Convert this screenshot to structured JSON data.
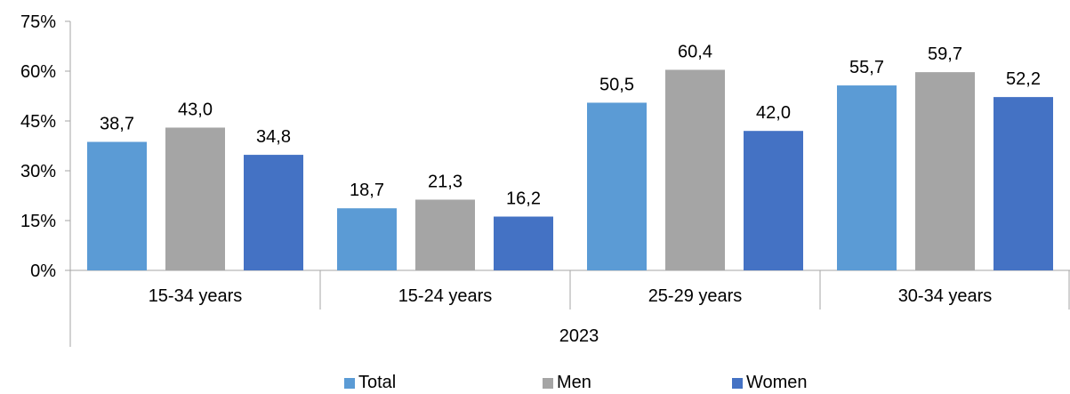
{
  "chart_data": {
    "type": "bar",
    "categories": [
      "15-34 years",
      "15-24 years",
      "25-29 years",
      "30-34 years"
    ],
    "group_label": "2023",
    "series": [
      {
        "name": "Total",
        "values": [
          38.7,
          18.7,
          50.5,
          55.7
        ],
        "labels": [
          "38,7",
          "18,7",
          "50,5",
          "55,7"
        ],
        "color": "#5B9BD5"
      },
      {
        "name": "Men",
        "values": [
          43.0,
          21.3,
          60.4,
          59.7
        ],
        "labels": [
          "43,0",
          "21,3",
          "60,4",
          "59,7"
        ],
        "color": "#A5A5A5"
      },
      {
        "name": "Women",
        "values": [
          34.8,
          16.2,
          42.0,
          52.2
        ],
        "labels": [
          "34,8",
          "16,2",
          "42,0",
          "52,2"
        ],
        "color": "#4472C4"
      }
    ],
    "y_ticks": [
      "0%",
      "15%",
      "30%",
      "45%",
      "60%",
      "75%"
    ],
    "ylim": [
      0,
      75
    ],
    "grid": false,
    "legend_position": "bottom"
  }
}
